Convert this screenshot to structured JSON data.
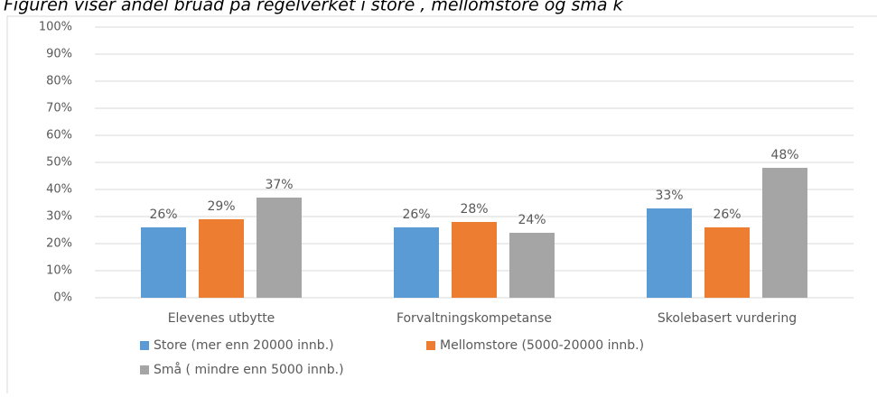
{
  "chart_data": {
    "type": "bar",
    "title": "Figuren viser andel bruad på regelverket i store , mellomstore og små k",
    "categories": [
      "Elevenes utbytte",
      "Forvaltningskompetanse",
      "Skolebasert vurdering"
    ],
    "series": [
      {
        "name": "Store  (mer enn 20000 innb.)",
        "color": "#5b9bd5",
        "values": [
          26,
          26,
          33
        ],
        "value_labels": [
          "26%",
          "26%",
          "33%"
        ]
      },
      {
        "name": "Mellomstore  (5000-20000 innb.)",
        "color": "#ed7d31",
        "values": [
          29,
          28,
          26
        ],
        "value_labels": [
          "29%",
          "28%",
          "26%"
        ]
      },
      {
        "name": "Små ( mindre enn 5000 innb.)",
        "color": "#a5a5a5",
        "values": [
          37,
          24,
          48
        ],
        "value_labels": [
          "37%",
          "24%",
          "48%"
        ]
      }
    ],
    "ylim": [
      0,
      100
    ],
    "yticks": [
      {
        "value": 0,
        "label": "0%"
      },
      {
        "value": 10,
        "label": "10%"
      },
      {
        "value": 20,
        "label": "20%"
      },
      {
        "value": 30,
        "label": "30%"
      },
      {
        "value": 40,
        "label": "40%"
      },
      {
        "value": 50,
        "label": "50%"
      },
      {
        "value": 60,
        "label": "60%"
      },
      {
        "value": 70,
        "label": "70%"
      },
      {
        "value": 80,
        "label": "80%"
      },
      {
        "value": 90,
        "label": "90%"
      },
      {
        "value": 100,
        "label": "100%"
      }
    ],
    "grid": true
  }
}
